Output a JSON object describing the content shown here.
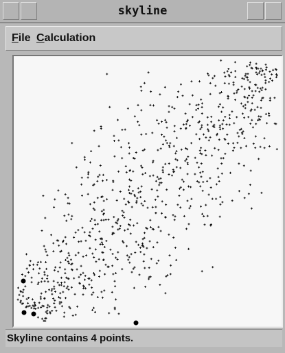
{
  "window": {
    "title": "skyline"
  },
  "menu": {
    "items": [
      "File",
      "Calculation"
    ]
  },
  "status": {
    "text": "Skyline contains 4 points."
  }
}
